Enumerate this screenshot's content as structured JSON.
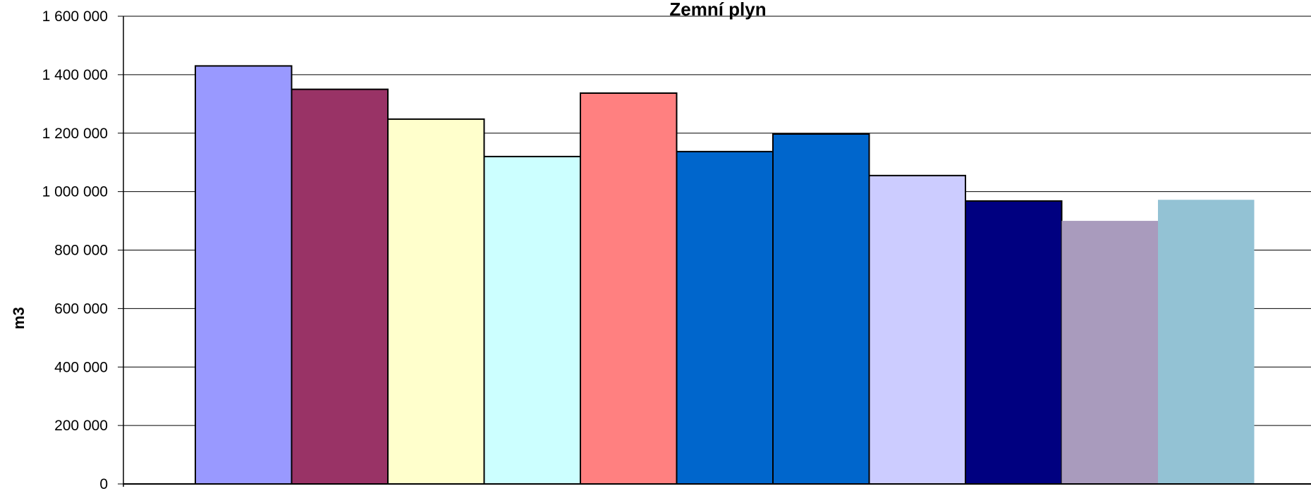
{
  "chart_data": {
    "type": "bar",
    "title": "Zemní plyn",
    "ylabel": "m3",
    "xlabel": "",
    "ylim": [
      0,
      1600000
    ],
    "yticks": [
      0,
      200000,
      400000,
      600000,
      800000,
      1000000,
      1200000,
      1400000,
      1600000
    ],
    "ytick_labels": [
      "0",
      "200 000",
      "400 000",
      "600 000",
      "800 000",
      "1 000 000",
      "1 200 000",
      "1 400 000",
      "1 600 000"
    ],
    "grid": true,
    "series": [
      {
        "value": 1430000,
        "color": "#9999FF",
        "outlined": true
      },
      {
        "value": 1350000,
        "color": "#993366",
        "outlined": true
      },
      {
        "value": 1248000,
        "color": "#FFFFCC",
        "outlined": true
      },
      {
        "value": 1120000,
        "color": "#CCFFFF",
        "outlined": true
      },
      {
        "value": 1337000,
        "color": "#FF8080",
        "outlined": true
      },
      {
        "value": 1137000,
        "color": "#0066CC",
        "outlined": true
      },
      {
        "value": 1197000,
        "color": "#0066CC",
        "outlined": true
      },
      {
        "value": 1055000,
        "color": "#CCCCFF",
        "outlined": true
      },
      {
        "value": 968000,
        "color": "#000080",
        "outlined": true
      },
      {
        "value": 900000,
        "color": "#A99BBD",
        "outlined": false
      },
      {
        "value": 972000,
        "color": "#93C2D4",
        "outlined": false
      }
    ]
  }
}
